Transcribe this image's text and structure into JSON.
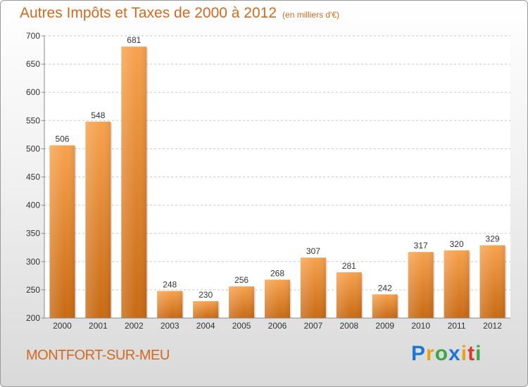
{
  "header": {
    "title": "Autres Impôts et Taxes de 2000 à 2012",
    "unit": "(en milliers d'€)"
  },
  "footer": {
    "commune": "MONTFORT-SUR-MEU",
    "brand_letters": [
      "P",
      "r",
      "o",
      "x",
      "i",
      "t",
      "i"
    ],
    "brand_colors": [
      "#1f77d0",
      "#e8a317",
      "#3aa845",
      "#1f77d0",
      "#e8a317",
      "#d63b2f",
      "#3aa845"
    ]
  },
  "chart_data": {
    "type": "bar",
    "title": "Autres Impôts et Taxes de 2000 à 2012",
    "xlabel": "",
    "ylabel": "",
    "categories": [
      "2000",
      "2001",
      "2002",
      "2003",
      "2004",
      "2005",
      "2006",
      "2007",
      "2008",
      "2009",
      "2010",
      "2011",
      "2012"
    ],
    "values": [
      506,
      548,
      681,
      248,
      230,
      256,
      268,
      307,
      281,
      242,
      317,
      320,
      329
    ],
    "ylim": [
      200,
      700
    ],
    "yticks": [
      200,
      250,
      300,
      350,
      400,
      450,
      500,
      550,
      600,
      650,
      700
    ],
    "grid": true,
    "bar_color_top": "#f7a24e",
    "bar_color_bottom": "#c86a14"
  }
}
